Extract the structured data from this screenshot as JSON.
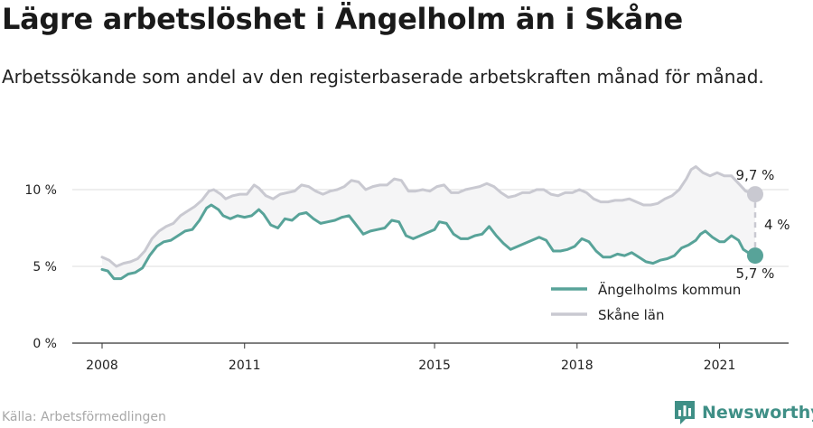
{
  "title": "Lägre arbetslöshet i Ängelholm än i Skåne",
  "subtitle": "Arbetssökande som andel av den registerbaserade arbetskraften månad för månad.",
  "source": "Källa: Arbetsförmedlingen",
  "brand": {
    "name": "Newsworthy",
    "icon": "bar-chart-logo-icon",
    "color": "#3f8f86"
  },
  "chart_data": {
    "type": "line",
    "x_ticks": [
      "2008",
      "2011",
      "2015",
      "2018",
      "2021"
    ],
    "y_ticks": [
      "0 %",
      "5 %",
      "10 %"
    ],
    "xlim": [
      2008.0,
      2022.5
    ],
    "ylim": [
      0,
      12
    ],
    "grid": true,
    "legend": "bottom-right",
    "gap_label": "4 %",
    "series": [
      {
        "name": "Ängelholms kommun",
        "color": "#58a399",
        "end_label": "5,7 %",
        "points": [
          [
            2008.0,
            4.8
          ],
          [
            2008.12,
            4.7
          ],
          [
            2008.25,
            4.2
          ],
          [
            2008.4,
            4.2
          ],
          [
            2008.55,
            4.5
          ],
          [
            2008.7,
            4.6
          ],
          [
            2008.85,
            4.9
          ],
          [
            2009.0,
            5.7
          ],
          [
            2009.15,
            6.3
          ],
          [
            2009.3,
            6.6
          ],
          [
            2009.45,
            6.7
          ],
          [
            2009.6,
            7.0
          ],
          [
            2009.75,
            7.3
          ],
          [
            2009.9,
            7.4
          ],
          [
            2010.05,
            8.0
          ],
          [
            2010.2,
            8.8
          ],
          [
            2010.3,
            9.0
          ],
          [
            2010.45,
            8.7
          ],
          [
            2010.55,
            8.3
          ],
          [
            2010.7,
            8.1
          ],
          [
            2010.85,
            8.3
          ],
          [
            2011.0,
            8.2
          ],
          [
            2011.15,
            8.3
          ],
          [
            2011.3,
            8.7
          ],
          [
            2011.4,
            8.4
          ],
          [
            2011.55,
            7.7
          ],
          [
            2011.7,
            7.5
          ],
          [
            2011.85,
            8.1
          ],
          [
            2012.0,
            8.0
          ],
          [
            2012.15,
            8.4
          ],
          [
            2012.3,
            8.5
          ],
          [
            2012.45,
            8.1
          ],
          [
            2012.6,
            7.8
          ],
          [
            2012.75,
            7.9
          ],
          [
            2012.9,
            8.0
          ],
          [
            2013.05,
            8.2
          ],
          [
            2013.2,
            8.3
          ],
          [
            2013.35,
            7.7
          ],
          [
            2013.5,
            7.1
          ],
          [
            2013.65,
            7.3
          ],
          [
            2013.8,
            7.4
          ],
          [
            2013.95,
            7.5
          ],
          [
            2014.1,
            8.0
          ],
          [
            2014.25,
            7.9
          ],
          [
            2014.4,
            7.0
          ],
          [
            2014.55,
            6.8
          ],
          [
            2014.7,
            7.0
          ],
          [
            2014.85,
            7.2
          ],
          [
            2015.0,
            7.4
          ],
          [
            2015.1,
            7.9
          ],
          [
            2015.25,
            7.8
          ],
          [
            2015.4,
            7.1
          ],
          [
            2015.55,
            6.8
          ],
          [
            2015.7,
            6.8
          ],
          [
            2015.85,
            7.0
          ],
          [
            2016.0,
            7.1
          ],
          [
            2016.15,
            7.6
          ],
          [
            2016.3,
            7.0
          ],
          [
            2016.45,
            6.5
          ],
          [
            2016.6,
            6.1
          ],
          [
            2016.75,
            6.3
          ],
          [
            2016.9,
            6.5
          ],
          [
            2017.05,
            6.7
          ],
          [
            2017.2,
            6.9
          ],
          [
            2017.35,
            6.7
          ],
          [
            2017.5,
            6.0
          ],
          [
            2017.65,
            6.0
          ],
          [
            2017.8,
            6.1
          ],
          [
            2017.95,
            6.3
          ],
          [
            2018.1,
            6.8
          ],
          [
            2018.25,
            6.6
          ],
          [
            2018.4,
            6.0
          ],
          [
            2018.55,
            5.6
          ],
          [
            2018.7,
            5.6
          ],
          [
            2018.85,
            5.8
          ],
          [
            2019.0,
            5.7
          ],
          [
            2019.15,
            5.9
          ],
          [
            2019.3,
            5.6
          ],
          [
            2019.45,
            5.3
          ],
          [
            2019.6,
            5.2
          ],
          [
            2019.75,
            5.4
          ],
          [
            2019.9,
            5.5
          ],
          [
            2020.05,
            5.7
          ],
          [
            2020.2,
            6.2
          ],
          [
            2020.35,
            6.4
          ],
          [
            2020.5,
            6.7
          ],
          [
            2020.6,
            7.1
          ],
          [
            2020.7,
            7.3
          ],
          [
            2020.85,
            6.9
          ],
          [
            2021.0,
            6.6
          ],
          [
            2021.1,
            6.6
          ],
          [
            2021.25,
            7.0
          ],
          [
            2021.4,
            6.7
          ],
          [
            2021.5,
            6.1
          ],
          [
            2021.65,
            5.8
          ],
          [
            2021.75,
            5.7
          ]
        ]
      },
      {
        "name": "Skåne län",
        "color": "#c9c9d1",
        "end_label": "9,7 %",
        "points": [
          [
            2008.0,
            5.6
          ],
          [
            2008.15,
            5.4
          ],
          [
            2008.3,
            5.0
          ],
          [
            2008.45,
            5.2
          ],
          [
            2008.6,
            5.3
          ],
          [
            2008.75,
            5.5
          ],
          [
            2008.9,
            6.0
          ],
          [
            2009.05,
            6.8
          ],
          [
            2009.2,
            7.3
          ],
          [
            2009.35,
            7.6
          ],
          [
            2009.5,
            7.8
          ],
          [
            2009.65,
            8.3
          ],
          [
            2009.8,
            8.6
          ],
          [
            2009.95,
            8.9
          ],
          [
            2010.1,
            9.3
          ],
          [
            2010.25,
            9.9
          ],
          [
            2010.35,
            10.0
          ],
          [
            2010.5,
            9.7
          ],
          [
            2010.6,
            9.4
          ],
          [
            2010.75,
            9.6
          ],
          [
            2010.9,
            9.7
          ],
          [
            2011.05,
            9.7
          ],
          [
            2011.2,
            10.3
          ],
          [
            2011.3,
            10.1
          ],
          [
            2011.45,
            9.6
          ],
          [
            2011.6,
            9.4
          ],
          [
            2011.75,
            9.7
          ],
          [
            2011.9,
            9.8
          ],
          [
            2012.05,
            9.9
          ],
          [
            2012.2,
            10.3
          ],
          [
            2012.35,
            10.2
          ],
          [
            2012.5,
            9.9
          ],
          [
            2012.65,
            9.7
          ],
          [
            2012.8,
            9.9
          ],
          [
            2012.95,
            10.0
          ],
          [
            2013.1,
            10.2
          ],
          [
            2013.25,
            10.6
          ],
          [
            2013.4,
            10.5
          ],
          [
            2013.55,
            10.0
          ],
          [
            2013.7,
            10.2
          ],
          [
            2013.85,
            10.3
          ],
          [
            2014.0,
            10.3
          ],
          [
            2014.15,
            10.7
          ],
          [
            2014.3,
            10.6
          ],
          [
            2014.45,
            9.9
          ],
          [
            2014.6,
            9.9
          ],
          [
            2014.75,
            10.0
          ],
          [
            2014.9,
            9.9
          ],
          [
            2015.05,
            10.2
          ],
          [
            2015.2,
            10.3
          ],
          [
            2015.35,
            9.8
          ],
          [
            2015.5,
            9.8
          ],
          [
            2015.65,
            10.0
          ],
          [
            2015.8,
            10.1
          ],
          [
            2015.95,
            10.2
          ],
          [
            2016.1,
            10.4
          ],
          [
            2016.25,
            10.2
          ],
          [
            2016.4,
            9.8
          ],
          [
            2016.55,
            9.5
          ],
          [
            2016.7,
            9.6
          ],
          [
            2016.85,
            9.8
          ],
          [
            2017.0,
            9.8
          ],
          [
            2017.15,
            10.0
          ],
          [
            2017.3,
            10.0
          ],
          [
            2017.45,
            9.7
          ],
          [
            2017.6,
            9.6
          ],
          [
            2017.75,
            9.8
          ],
          [
            2017.9,
            9.8
          ],
          [
            2018.05,
            10.0
          ],
          [
            2018.2,
            9.8
          ],
          [
            2018.35,
            9.4
          ],
          [
            2018.5,
            9.2
          ],
          [
            2018.65,
            9.2
          ],
          [
            2018.8,
            9.3
          ],
          [
            2018.95,
            9.3
          ],
          [
            2019.1,
            9.4
          ],
          [
            2019.25,
            9.2
          ],
          [
            2019.4,
            9.0
          ],
          [
            2019.55,
            9.0
          ],
          [
            2019.7,
            9.1
          ],
          [
            2019.85,
            9.4
          ],
          [
            2020.0,
            9.6
          ],
          [
            2020.15,
            10.0
          ],
          [
            2020.3,
            10.7
          ],
          [
            2020.4,
            11.3
          ],
          [
            2020.5,
            11.5
          ],
          [
            2020.65,
            11.1
          ],
          [
            2020.8,
            10.9
          ],
          [
            2020.95,
            11.1
          ],
          [
            2021.1,
            10.9
          ],
          [
            2021.25,
            10.9
          ],
          [
            2021.4,
            10.4
          ],
          [
            2021.55,
            9.9
          ],
          [
            2021.75,
            9.7
          ]
        ]
      }
    ]
  }
}
